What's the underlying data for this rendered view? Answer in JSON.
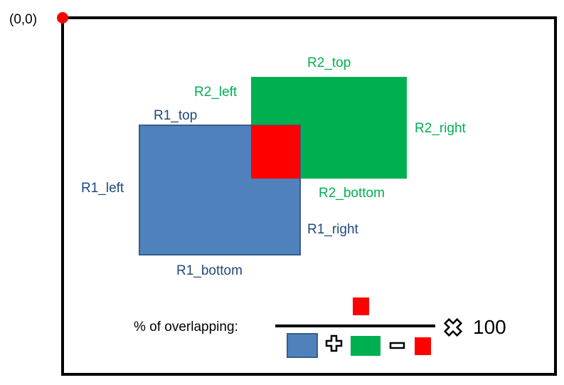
{
  "origin_label": "(0,0)",
  "colors": {
    "frame": "#000000",
    "origin_dot": "#ff0000",
    "r1_fill": "#4f81bd",
    "r1_stroke": "#385d8a",
    "r1_text": "#1f497d",
    "r2_fill": "#00b050",
    "r2_text": "#00b050",
    "overlap": "#ff0000"
  },
  "r1": {
    "top": "R1_top",
    "left": "R1_left",
    "right": "R1_right",
    "bottom": "R1_bottom"
  },
  "r2": {
    "top": "R2_top",
    "left": "R2_left",
    "right": "R2_right",
    "bottom": "R2_bottom"
  },
  "formula": {
    "label": "% of overlapping:",
    "multiplier": "100"
  },
  "icons": {
    "plus": "plus-icon",
    "minus": "minus-icon",
    "times": "times-icon"
  }
}
